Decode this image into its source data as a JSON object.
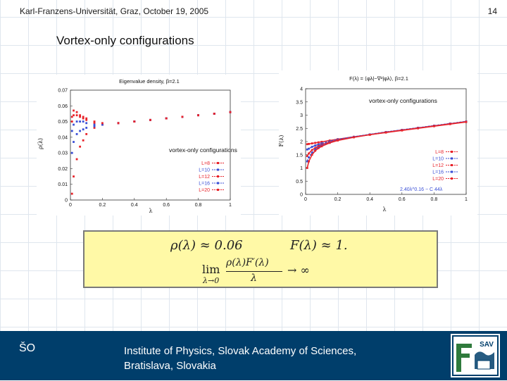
{
  "header": {
    "left": "Karl-Franzens-Universität, Graz, October 19, 2005",
    "page_number": "14"
  },
  "title": "Vortex-only configurations",
  "formula": {
    "rho": "ρ(λ) ≈ 0.06",
    "F": "F(λ) ≈ 1.",
    "lim_word": "lim",
    "lim_sub": "λ→0",
    "numerator": "ρ(λ)F′(λ)",
    "denominator": "λ",
    "arrow": "→ ∞"
  },
  "footer": {
    "initials": "ŠO",
    "institute_line1": "Institute of Physics, Slovak Academy of Sciences,",
    "institute_line2": "Bratislava, Slovakia"
  },
  "logo": {
    "text": "SAV"
  },
  "colors": {
    "footer_bg": "#003e6b",
    "formula_bg": "#fff9a6"
  },
  "chart_data": [
    {
      "type": "scatter",
      "title": "Eigenvalue density, β=2.1",
      "xlabel": "λ",
      "ylabel": "ρ(λ)",
      "xlim": [
        0,
        1
      ],
      "ylim": [
        0,
        0.07
      ],
      "xticks": [
        "0",
        "0.2",
        "0.4",
        "0.6",
        "0.8",
        "1"
      ],
      "yticks": [
        "0",
        "0.01",
        "0.02",
        "0.03",
        "0.04",
        "0.05",
        "0.06",
        "0.07"
      ],
      "annotation": "vortex-only configurations",
      "legend": "bottom-right",
      "series": [
        {
          "name": "L=8",
          "color": "#e8232a",
          "x": [
            0.01,
            0.02,
            0.04,
            0.06,
            0.08,
            0.1,
            0.15,
            0.2,
            0.3,
            0.4,
            0.5,
            0.6,
            0.7,
            0.8,
            0.9,
            1.0
          ],
          "y": [
            0.004,
            0.015,
            0.026,
            0.034,
            0.038,
            0.042,
            0.046,
            0.048,
            0.049,
            0.05,
            0.051,
            0.052,
            0.053,
            0.054,
            0.055,
            0.056
          ]
        },
        {
          "name": "L=10",
          "color": "#3a4fd6",
          "x": [
            0.01,
            0.02,
            0.04,
            0.06,
            0.08,
            0.1,
            0.15,
            0.2,
            0.3,
            0.4,
            0.5,
            0.6,
            0.7,
            0.8,
            0.9,
            1.0
          ],
          "y": [
            0.03,
            0.037,
            0.042,
            0.044,
            0.045,
            0.046,
            0.047,
            0.048,
            0.049,
            0.05,
            0.051,
            0.052,
            0.053,
            0.054,
            0.055,
            0.056
          ]
        },
        {
          "name": "L=12",
          "color": "#e8232a",
          "x": [
            0.01,
            0.02,
            0.04,
            0.06,
            0.08,
            0.1,
            0.15,
            0.2,
            0.3,
            0.4,
            0.5,
            0.6,
            0.7,
            0.8,
            0.9,
            1.0
          ],
          "y": [
            0.05,
            0.054,
            0.054,
            0.053,
            0.052,
            0.051,
            0.049,
            0.048,
            0.049,
            0.05,
            0.051,
            0.052,
            0.053,
            0.054,
            0.055,
            0.056
          ]
        },
        {
          "name": "L=16",
          "color": "#3a4fd6",
          "x": [
            0.01,
            0.02,
            0.04,
            0.06,
            0.08,
            0.1,
            0.15,
            0.2,
            0.3,
            0.4,
            0.5,
            0.6,
            0.7,
            0.8,
            0.9,
            1.0
          ],
          "y": [
            0.044,
            0.048,
            0.05,
            0.05,
            0.05,
            0.049,
            0.048,
            0.048,
            0.049,
            0.05,
            0.051,
            0.052,
            0.053,
            0.054,
            0.055,
            0.056
          ]
        },
        {
          "name": "L=20",
          "color": "#e8232a",
          "x": [
            0.01,
            0.02,
            0.04,
            0.06,
            0.08,
            0.1,
            0.15,
            0.2,
            0.3,
            0.4,
            0.5,
            0.6,
            0.7,
            0.8,
            0.9,
            1.0
          ],
          "y": [
            0.053,
            0.057,
            0.056,
            0.054,
            0.053,
            0.052,
            0.05,
            0.049,
            0.049,
            0.05,
            0.051,
            0.052,
            0.053,
            0.054,
            0.055,
            0.056
          ]
        }
      ]
    },
    {
      "type": "line",
      "title": "F(λ) = ⟨φλ|−∇²|φλ⟩, β=2.1",
      "xlabel": "λ",
      "ylabel": "F(λ)",
      "xlim": [
        0,
        1
      ],
      "ylim": [
        0,
        4
      ],
      "xticks": [
        "0",
        "0.2",
        "0.4",
        "0.6",
        "0.8",
        "1"
      ],
      "yticks": [
        "0",
        "0.5",
        "1",
        "1.5",
        "2",
        "2.5",
        "3",
        "3.5",
        "4"
      ],
      "annotation": "vortex-only configurations",
      "legend": "bottom-right",
      "fit_label": "2.40λ^0.16 − C 44λ",
      "series": [
        {
          "name": "L=8",
          "color": "#e8232a",
          "x": [
            0.01,
            0.02,
            0.04,
            0.06,
            0.08,
            0.1,
            0.15,
            0.2,
            0.3,
            0.4,
            0.5,
            0.6,
            0.7,
            0.8,
            0.9,
            1.0
          ],
          "y": [
            1.9,
            1.91,
            1.93,
            1.95,
            1.97,
            1.99,
            2.04,
            2.09,
            2.18,
            2.26,
            2.34,
            2.42,
            2.5,
            2.58,
            2.66,
            2.74
          ]
        },
        {
          "name": "L=10",
          "color": "#3a4fd6",
          "x": [
            0.01,
            0.02,
            0.04,
            0.06,
            0.08,
            0.1,
            0.15,
            0.2,
            0.3,
            0.4,
            0.5,
            0.6,
            0.7,
            0.8,
            0.9,
            1.0
          ],
          "y": [
            1.7,
            1.73,
            1.8,
            1.85,
            1.89,
            1.93,
            2.01,
            2.08,
            2.18,
            2.27,
            2.36,
            2.44,
            2.52,
            2.6,
            2.68,
            2.76
          ]
        },
        {
          "name": "L=12",
          "color": "#e8232a",
          "x": [
            0.01,
            0.02,
            0.04,
            0.06,
            0.08,
            0.1,
            0.15,
            0.2,
            0.3,
            0.4,
            0.5,
            0.6,
            0.7,
            0.8,
            0.9,
            1.0
          ],
          "y": [
            1.45,
            1.55,
            1.68,
            1.76,
            1.83,
            1.88,
            1.98,
            2.06,
            2.17,
            2.26,
            2.35,
            2.43,
            2.51,
            2.59,
            2.67,
            2.75
          ]
        },
        {
          "name": "L=16",
          "color": "#3a4fd6",
          "x": [
            0.01,
            0.02,
            0.04,
            0.06,
            0.08,
            0.1,
            0.15,
            0.2,
            0.3,
            0.4,
            0.5,
            0.6,
            0.7,
            0.8,
            0.9,
            1.0
          ],
          "y": [
            1.25,
            1.4,
            1.58,
            1.7,
            1.78,
            1.85,
            1.96,
            2.05,
            2.17,
            2.27,
            2.36,
            2.44,
            2.52,
            2.6,
            2.68,
            2.76
          ]
        },
        {
          "name": "L=20",
          "color": "#e8232a",
          "x": [
            0.01,
            0.02,
            0.04,
            0.06,
            0.08,
            0.1,
            0.15,
            0.2,
            0.3,
            0.4,
            0.5,
            0.6,
            0.7,
            0.8,
            0.9,
            1.0
          ],
          "y": [
            1.0,
            1.25,
            1.5,
            1.65,
            1.75,
            1.82,
            1.95,
            2.04,
            2.16,
            2.26,
            2.35,
            2.43,
            2.51,
            2.59,
            2.67,
            2.75
          ]
        }
      ]
    }
  ]
}
